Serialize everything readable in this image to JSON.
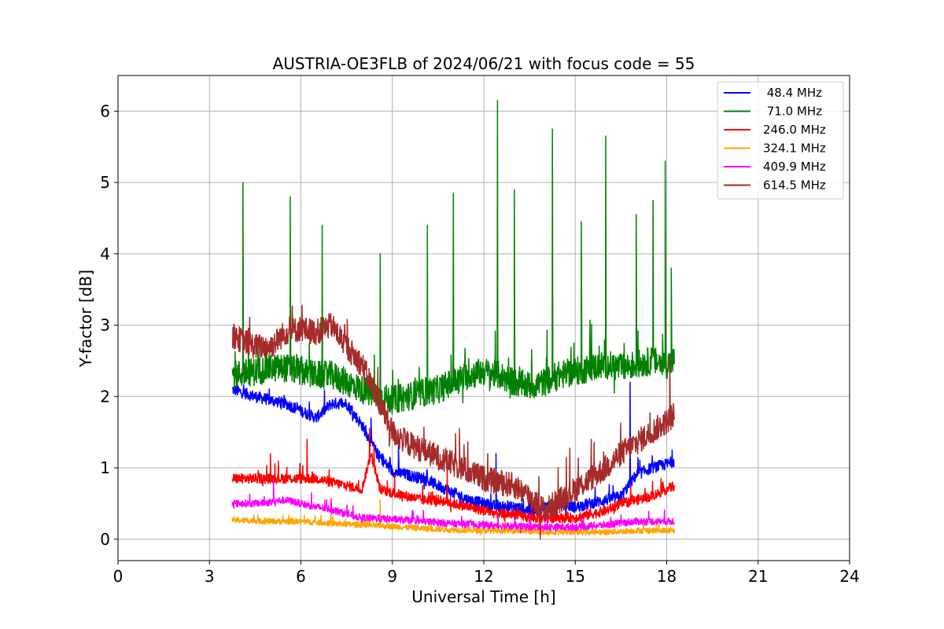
{
  "chart_data": {
    "type": "line",
    "title": "AUSTRIA-OE3FLB of 2024/06/21 with focus code = 55",
    "xlabel": "Universal Time [h]",
    "ylabel": "Y-factor [dB]",
    "xlim": [
      0,
      24
    ],
    "ylim": [
      -0.3,
      6.5
    ],
    "xticks": [
      "0",
      "3",
      "6",
      "9",
      "12",
      "15",
      "18",
      "21",
      "24"
    ],
    "yticks": [
      "0",
      "1",
      "2",
      "3",
      "4",
      "5",
      "6"
    ],
    "grid": true,
    "legend_position": "top-right",
    "series": [
      {
        "name": " 48.4 MHz",
        "color": "#0000ff",
        "x": [
          3.75,
          4.5,
          5.0,
          5.5,
          6.0,
          6.5,
          7.0,
          7.5,
          8.0,
          8.5,
          9.0,
          9.5,
          10.0,
          10.5,
          11.0,
          11.5,
          12.0,
          12.5,
          13.0,
          13.5,
          14.0,
          14.5,
          15.0,
          15.5,
          16.0,
          16.5,
          17.0,
          17.5,
          18.0,
          18.25
        ],
        "y": [
          2.1,
          2.0,
          1.95,
          1.9,
          1.8,
          1.7,
          1.9,
          1.9,
          1.6,
          1.2,
          0.95,
          0.9,
          0.85,
          0.75,
          0.65,
          0.55,
          0.5,
          0.45,
          0.45,
          0.4,
          0.45,
          0.5,
          0.45,
          0.5,
          0.55,
          0.6,
          0.9,
          1.0,
          1.05,
          1.1
        ],
        "noise": 0.08,
        "spikes": [
          [
            8.3,
            1.7
          ],
          [
            9.2,
            1.3
          ],
          [
            12.4,
            1.2
          ],
          [
            16.8,
            2.2
          ]
        ]
      },
      {
        "name": " 71.0 MHz",
        "color": "#008000",
        "x": [
          3.75,
          4.5,
          5.0,
          5.5,
          6.0,
          6.5,
          7.0,
          7.5,
          8.0,
          8.5,
          9.0,
          9.5,
          10.0,
          10.5,
          11.0,
          11.5,
          12.0,
          12.5,
          13.0,
          13.5,
          14.0,
          14.5,
          15.0,
          15.5,
          16.0,
          16.5,
          17.0,
          17.5,
          18.0,
          18.25
        ],
        "y": [
          2.3,
          2.35,
          2.4,
          2.4,
          2.35,
          2.3,
          2.3,
          2.2,
          2.1,
          2.0,
          1.95,
          2.0,
          2.05,
          2.1,
          2.2,
          2.3,
          2.35,
          2.3,
          2.2,
          2.15,
          2.2,
          2.3,
          2.35,
          2.4,
          2.45,
          2.4,
          2.45,
          2.5,
          2.45,
          2.5
        ],
        "noise": 0.2,
        "spikes": [
          [
            4.1,
            5.0
          ],
          [
            5.65,
            4.8
          ],
          [
            6.7,
            4.4
          ],
          [
            8.6,
            4.0
          ],
          [
            10.15,
            4.4
          ],
          [
            11.0,
            4.85
          ],
          [
            12.45,
            6.15
          ],
          [
            13.0,
            4.9
          ],
          [
            14.25,
            5.75
          ],
          [
            15.2,
            4.45
          ],
          [
            16.0,
            5.65
          ],
          [
            17.0,
            4.55
          ],
          [
            17.55,
            4.75
          ],
          [
            17.95,
            5.3
          ],
          [
            18.15,
            3.8
          ]
        ]
      },
      {
        "name": "246.0 MHz",
        "color": "#ff0000",
        "x": [
          3.75,
          4.5,
          5.0,
          5.5,
          6.0,
          6.5,
          7.0,
          7.5,
          8.0,
          8.3,
          8.6,
          9.0,
          9.5,
          10.0,
          10.5,
          11.0,
          11.5,
          12.0,
          12.5,
          13.0,
          13.5,
          14.0,
          14.5,
          15.0,
          15.5,
          16.0,
          16.5,
          17.0,
          17.5,
          18.0,
          18.25
        ],
        "y": [
          0.85,
          0.85,
          0.85,
          0.85,
          0.85,
          0.85,
          0.8,
          0.75,
          0.7,
          1.2,
          0.7,
          0.65,
          0.6,
          0.55,
          0.55,
          0.5,
          0.45,
          0.4,
          0.35,
          0.35,
          0.3,
          0.3,
          0.3,
          0.3,
          0.35,
          0.4,
          0.5,
          0.55,
          0.6,
          0.7,
          0.75
        ],
        "noise": 0.07,
        "spikes": [
          [
            5.0,
            1.2
          ],
          [
            6.2,
            1.4
          ],
          [
            8.25,
            1.55
          ],
          [
            8.4,
            1.3
          ],
          [
            10.8,
            1.0
          ]
        ]
      },
      {
        "name": "324.1 MHz",
        "color": "#ffa500",
        "x": [
          3.75,
          5.0,
          6.0,
          7.0,
          8.0,
          9.0,
          10.0,
          11.0,
          12.0,
          13.0,
          14.0,
          15.0,
          16.0,
          17.0,
          18.0,
          18.25
        ],
        "y": [
          0.27,
          0.25,
          0.25,
          0.22,
          0.2,
          0.18,
          0.15,
          0.13,
          0.12,
          0.12,
          0.1,
          0.1,
          0.1,
          0.12,
          0.12,
          0.12
        ],
        "noise": 0.04,
        "spikes": [
          [
            8.6,
            0.55
          ]
        ]
      },
      {
        "name": "409.9 MHz",
        "color": "#ff00ff",
        "x": [
          3.75,
          4.5,
          5.0,
          5.5,
          6.0,
          6.5,
          7.0,
          7.5,
          8.0,
          9.0,
          10.0,
          11.0,
          12.0,
          13.0,
          14.0,
          15.0,
          16.0,
          17.0,
          18.0,
          18.25
        ],
        "y": [
          0.5,
          0.5,
          0.52,
          0.55,
          0.5,
          0.45,
          0.42,
          0.35,
          0.3,
          0.28,
          0.25,
          0.22,
          0.2,
          0.18,
          0.17,
          0.17,
          0.2,
          0.25,
          0.25,
          0.25
        ],
        "noise": 0.05,
        "spikes": [
          [
            5.1,
            0.85
          ]
        ]
      },
      {
        "name": "614.5 MHz",
        "color": "#a52a2a",
        "x": [
          3.75,
          4.5,
          5.0,
          5.5,
          6.0,
          6.5,
          7.0,
          7.5,
          8.0,
          8.5,
          9.0,
          9.5,
          10.0,
          10.5,
          11.0,
          11.5,
          12.0,
          12.5,
          13.0,
          13.5,
          14.0,
          14.5,
          15.0,
          15.5,
          16.0,
          16.5,
          17.0,
          17.5,
          18.0,
          18.25
        ],
        "y": [
          2.85,
          2.7,
          2.7,
          2.9,
          2.95,
          2.9,
          3.0,
          2.7,
          2.45,
          2.0,
          1.5,
          1.35,
          1.25,
          1.15,
          1.05,
          0.95,
          0.85,
          0.8,
          0.75,
          0.6,
          0.4,
          0.55,
          0.7,
          0.85,
          1.0,
          1.2,
          1.35,
          1.5,
          1.65,
          1.75
        ],
        "noise": 0.18,
        "spikes": [
          [
            8.9,
            1.3
          ],
          [
            11.2,
            1.55
          ],
          [
            13.85,
            0.0
          ],
          [
            18.1,
            2.55
          ]
        ]
      }
    ]
  }
}
